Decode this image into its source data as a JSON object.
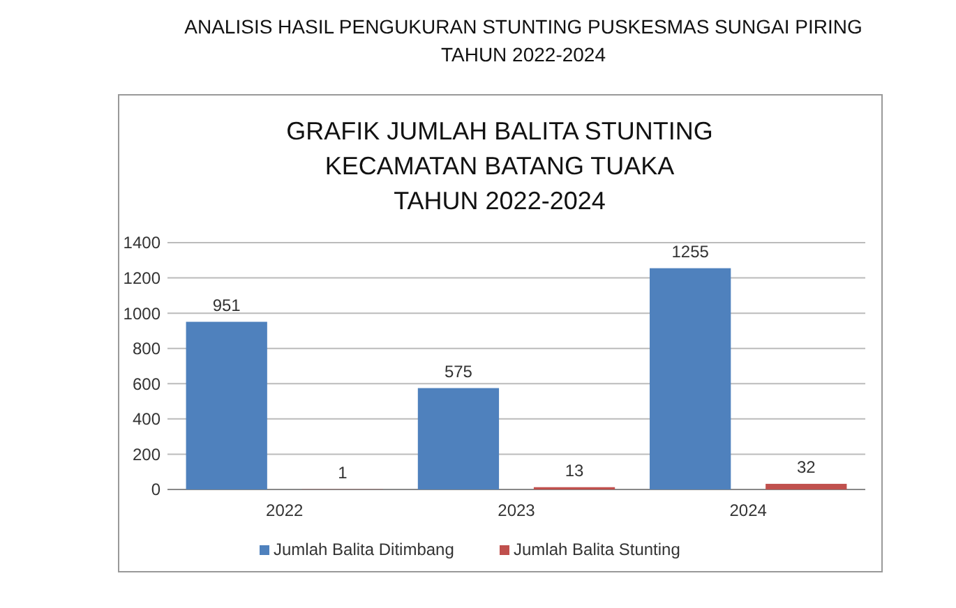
{
  "chart_data": {
    "type": "bar",
    "title": "ANALISIS HASIL PENGUKURAN STUNTING PUSKESMAS SUNGAI PIRING\nTAHUN 2022-2024",
    "subtitle": "GRAFIK JUMLAH BALITA STUNTING\nKECAMATAN BATANG TUAKA\nTAHUN 2022-2024",
    "categories": [
      "2022",
      "2023",
      "2024"
    ],
    "series": [
      {
        "name": "Jumlah Balita Ditimbang",
        "color": "#4f81bd",
        "values": [
          951,
          575,
          1255
        ]
      },
      {
        "name": "Jumlah Balita Stunting",
        "color": "#c0504d",
        "values": [
          1,
          13,
          32
        ]
      }
    ],
    "ylim": [
      0,
      1400
    ],
    "yticks": [
      0,
      200,
      400,
      600,
      800,
      1000,
      1200,
      1400
    ],
    "grid": "y",
    "legend": "bottom",
    "data_labels": true
  }
}
